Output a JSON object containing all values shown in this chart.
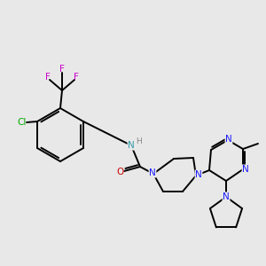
{
  "background_color": "#e8e8e8",
  "bond_color": "#000000",
  "colors": {
    "N": "#1a1aff",
    "NH": "#3399aa",
    "H": "#888888",
    "O": "#cc0000",
    "F": "#cc00cc",
    "Cl": "#00aa00"
  },
  "figsize": [
    3.0,
    3.0
  ],
  "dpi": 100
}
